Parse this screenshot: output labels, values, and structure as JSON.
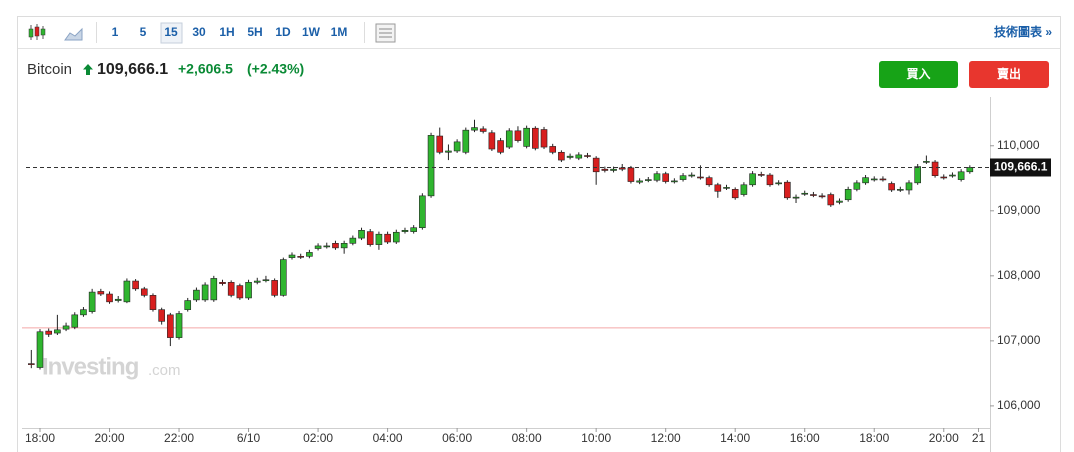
{
  "toolbar": {
    "intervals": [
      "1",
      "5",
      "15",
      "30",
      "1H",
      "5H",
      "1D",
      "1W",
      "1M"
    ],
    "selected": "15",
    "link": "技術圖表 »"
  },
  "header": {
    "name": "Bitcoin",
    "price": "109,666.1",
    "change": "+2,606.5",
    "change_pct": "(+2.43%)",
    "buy": "買入",
    "sell": "賣出"
  },
  "watermark": {
    "brand": "Investing",
    "suffix": ".com"
  },
  "chart_data": {
    "type": "candlestick",
    "categories": [
      null,
      "18:00",
      null,
      null,
      null,
      null,
      null,
      null,
      null,
      "20:00",
      null,
      null,
      null,
      null,
      null,
      null,
      null,
      "22:00",
      null,
      null,
      null,
      null,
      null,
      null,
      null,
      "6/10",
      null,
      null,
      null,
      null,
      null,
      null,
      null,
      "02:00",
      null,
      null,
      null,
      null,
      null,
      null,
      null,
      "04:00",
      null,
      null,
      null,
      null,
      null,
      null,
      null,
      "06:00",
      null,
      null,
      null,
      null,
      null,
      null,
      null,
      "08:00",
      null,
      null,
      null,
      null,
      null,
      null,
      null,
      "10:00",
      null,
      null,
      null,
      null,
      null,
      null,
      null,
      "12:00",
      null,
      null,
      null,
      null,
      null,
      null,
      null,
      "14:00",
      null,
      null,
      null,
      null,
      null,
      null,
      null,
      "16:00",
      null,
      null,
      null,
      null,
      null,
      null,
      null,
      "18:00",
      null,
      null,
      null,
      null,
      null,
      null,
      null,
      "20:00",
      null,
      null,
      null,
      "21"
    ],
    "open": [
      106650,
      106590,
      107150,
      107120,
      107180,
      107210,
      107400,
      107450,
      107760,
      107720,
      107620,
      107600,
      107920,
      107800,
      107700,
      107480,
      107400,
      107050,
      107480,
      107630,
      107630,
      107630,
      107900,
      107900,
      107850,
      107660,
      107900,
      107930,
      107930,
      107700,
      108280,
      108300,
      108300,
      108420,
      108450,
      108500,
      108430,
      108500,
      108580,
      108680,
      108480,
      108640,
      108520,
      108680,
      108680,
      108740,
      109230,
      110150,
      109900,
      109920,
      109900,
      110240,
      110260,
      110200,
      110080,
      109980,
      110230,
      109990,
      110270,
      110250,
      109990,
      109900,
      109820,
      109810,
      109850,
      109810,
      109640,
      109620,
      109660,
      109660,
      109440,
      109470,
      109470,
      109570,
      109450,
      109480,
      109540,
      109520,
      109510,
      109400,
      109350,
      109330,
      109250,
      109400,
      109560,
      109550,
      109420,
      109440,
      109200,
      109260,
      109250,
      109230,
      109250,
      109130,
      109170,
      109330,
      109430,
      109480,
      109490,
      109420,
      109320,
      109320,
      109430,
      109750,
      109750,
      109520,
      109540,
      109480,
      109600,
      null
    ],
    "high": [
      106860,
      107180,
      107190,
      107400,
      107280,
      107440,
      107520,
      107800,
      107800,
      107760,
      107690,
      107960,
      107950,
      107830,
      107730,
      107510,
      107430,
      107460,
      107660,
      107820,
      107900,
      108000,
      107940,
      107930,
      107880,
      107940,
      107970,
      108000,
      107960,
      108280,
      108360,
      108340,
      108400,
      108500,
      108510,
      108540,
      108540,
      108620,
      108740,
      108720,
      108680,
      108680,
      108710,
      108740,
      108780,
      109270,
      110200,
      110280,
      110020,
      110100,
      110280,
      110400,
      110300,
      110240,
      110120,
      110270,
      110300,
      110310,
      110300,
      110290,
      110030,
      109930,
      109880,
      109900,
      109890,
      109840,
      109680,
      109680,
      109720,
      109690,
      109500,
      109520,
      109610,
      109600,
      109500,
      109580,
      109590,
      109700,
      109540,
      109430,
      109400,
      109360,
      109440,
      109610,
      109600,
      109580,
      109470,
      109470,
      109250,
      109310,
      109290,
      109270,
      109280,
      109190,
      109370,
      109470,
      109550,
      109530,
      109530,
      109450,
      109370,
      109470,
      109720,
      109850,
      109780,
      109560,
      109590,
      109640,
      109700,
      null
    ],
    "low": [
      106580,
      106560,
      107060,
      107090,
      107150,
      107180,
      107370,
      107420,
      107690,
      107570,
      107590,
      107580,
      107770,
      107670,
      107450,
      107250,
      106920,
      107020,
      107450,
      107600,
      107600,
      107600,
      107850,
      107670,
      107630,
      107630,
      107870,
      107900,
      107670,
      107680,
      108250,
      108260,
      108270,
      108390,
      108420,
      108400,
      108340,
      108470,
      108550,
      108450,
      108400,
      108490,
      108490,
      108650,
      108650,
      108710,
      109200,
      109870,
      109780,
      109890,
      109870,
      110210,
      110190,
      109920,
      109870,
      109950,
      110050,
      109960,
      109930,
      109950,
      109870,
      109750,
      109790,
      109780,
      109810,
      109400,
      109590,
      109590,
      109610,
      109420,
      109410,
      109440,
      109440,
      109420,
      109420,
      109450,
      109510,
      109480,
      109370,
      109200,
      109320,
      109170,
      109220,
      109370,
      109520,
      109370,
      109390,
      109170,
      109120,
      109230,
      109210,
      109190,
      109060,
      109100,
      109140,
      109300,
      109400,
      109450,
      109450,
      109290,
      109290,
      109250,
      109400,
      109720,
      109510,
      109480,
      109510,
      109450,
      109570,
      null
    ],
    "close": [
      106640,
      107140,
      107100,
      107170,
      107230,
      107400,
      107480,
      107750,
      107720,
      107600,
      107640,
      107920,
      107800,
      107700,
      107480,
      107300,
      107050,
      107420,
      107620,
      107780,
      107860,
      107960,
      107880,
      107700,
      107660,
      107900,
      107920,
      107940,
      107700,
      108250,
      108320,
      108290,
      108360,
      108460,
      108460,
      108430,
      108500,
      108580,
      108700,
      108480,
      108640,
      108520,
      108670,
      108700,
      108740,
      109230,
      110160,
      109900,
      109920,
      110060,
      110240,
      110280,
      110220,
      109950,
      109900,
      110230,
      110080,
      110270,
      109960,
      109980,
      109900,
      109780,
      109840,
      109860,
      109840,
      109600,
      109620,
      109640,
      109640,
      109450,
      109460,
      109480,
      109570,
      109450,
      109460,
      109540,
      109550,
      109510,
      109400,
      109300,
      109360,
      109200,
      109400,
      109570,
      109550,
      109400,
      109430,
      109200,
      109210,
      109270,
      109240,
      109220,
      109090,
      109150,
      109330,
      109430,
      109510,
      109490,
      109480,
      109320,
      109330,
      109430,
      109680,
      109760,
      109540,
      109510,
      109550,
      109600,
      109666.1,
      null
    ],
    "up_color": "#2fb52f",
    "down_color": "#d81f1f",
    "ylim": [
      105660,
      110750
    ],
    "yticks": [
      {
        "value": 106000,
        "label": "106,000"
      },
      {
        "value": 107000,
        "label": "107,000"
      },
      {
        "value": 108000,
        "label": "108,000"
      },
      {
        "value": 109000,
        "label": "109,000"
      },
      {
        "value": 110000,
        "label": "110,000"
      }
    ],
    "last_price": 109666.1,
    "last_price_label": "109,666.1",
    "reference_line": 107200,
    "reference_color": "#f4a6a6"
  }
}
